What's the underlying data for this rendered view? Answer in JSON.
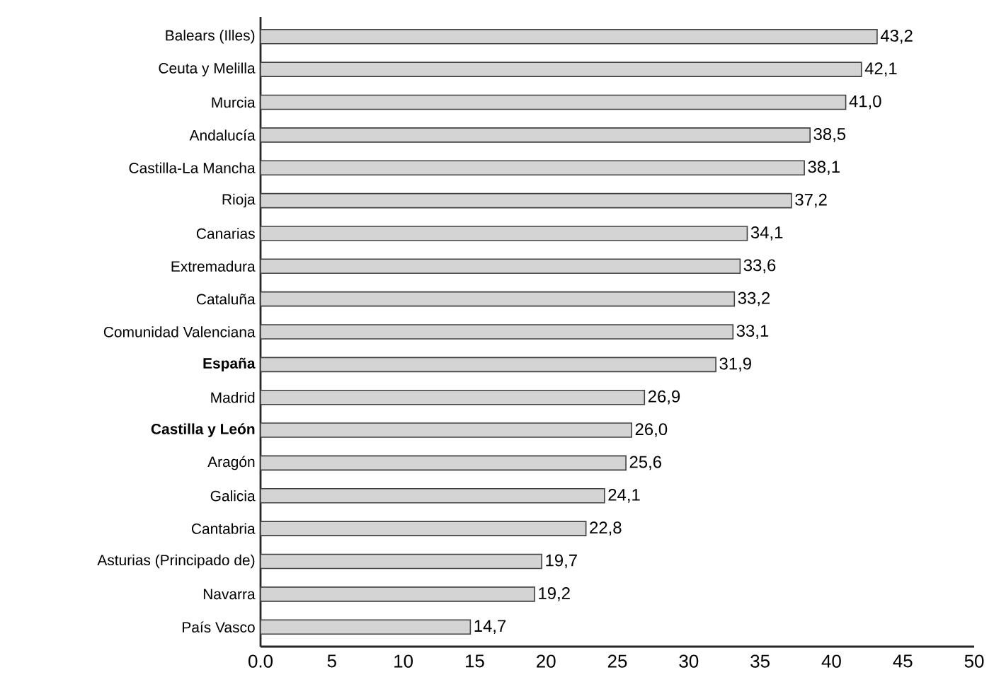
{
  "chart_data": {
    "type": "bar",
    "orientation": "horizontal",
    "categories": [
      "Balears (Illes)",
      "Ceuta y Melilla",
      "Murcia",
      "Andalucía",
      "Castilla-La Mancha",
      "Rioja",
      "Canarias",
      "Extremadura",
      "Cataluña",
      "Comunidad Valenciana",
      "**España**",
      "Madrid",
      "**Castilla y León**",
      "Aragón",
      "Galicia",
      "Cantabria",
      "Asturias (Principado de)",
      "Navarra",
      "País Vasco"
    ],
    "values": [
      43.2,
      42.1,
      41.0,
      38.5,
      38.1,
      37.2,
      34.1,
      33.6,
      33.2,
      33.1,
      31.9,
      26.9,
      26.0,
      25.6,
      24.1,
      22.8,
      19.7,
      19.2,
      14.7
    ],
    "value_labels": [
      "43,2",
      "42,1",
      "41,0",
      "38,5",
      "38,1",
      "37,2",
      "34,1",
      "33,6",
      "33,2",
      "33,1",
      "31,9",
      "26,9",
      "26,0",
      "25,6",
      "24,1",
      "22,8",
      "19,7",
      "19,2",
      "14,7"
    ],
    "color": "#d4d4d4",
    "xlim": [
      0,
      50
    ],
    "xticks": [
      {
        "value": 0,
        "label": "0.0"
      },
      5,
      10,
      15,
      20,
      25,
      30,
      35,
      40,
      45,
      50
    ],
    "tick_labels": "xy"
  }
}
